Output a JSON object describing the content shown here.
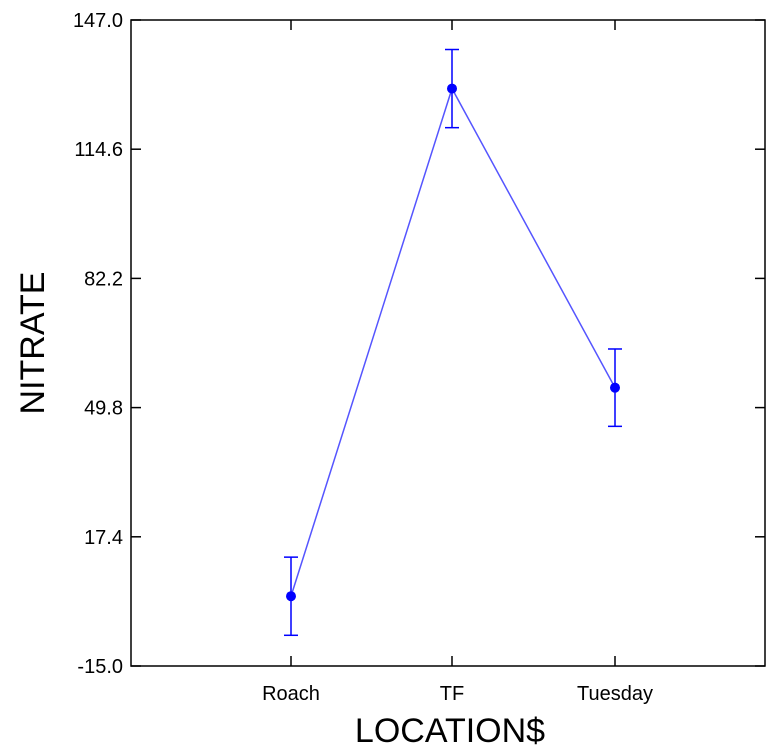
{
  "chart_data": {
    "type": "line",
    "title": "",
    "xlabel": "LOCATION$",
    "ylabel": "NITRATE",
    "categories": [
      "Roach",
      "TF",
      "Tuesday"
    ],
    "yticks": [
      "-15.0",
      "17.4",
      "49.8",
      "82.2",
      "114.6",
      "147.0"
    ],
    "ylim": [
      -15.0,
      147.0
    ],
    "grid": false,
    "series": [
      {
        "values": [
          2.5,
          129.8,
          54.8
        ],
        "error_low": [
          -7.3,
          120.0,
          45.1
        ],
        "error_high": [
          12.3,
          139.6,
          64.5
        ]
      }
    ],
    "colors": {
      "series": "#0000ff",
      "errorbar": "#0000ff",
      "line": "#5555ff",
      "axis": "#000000"
    }
  }
}
